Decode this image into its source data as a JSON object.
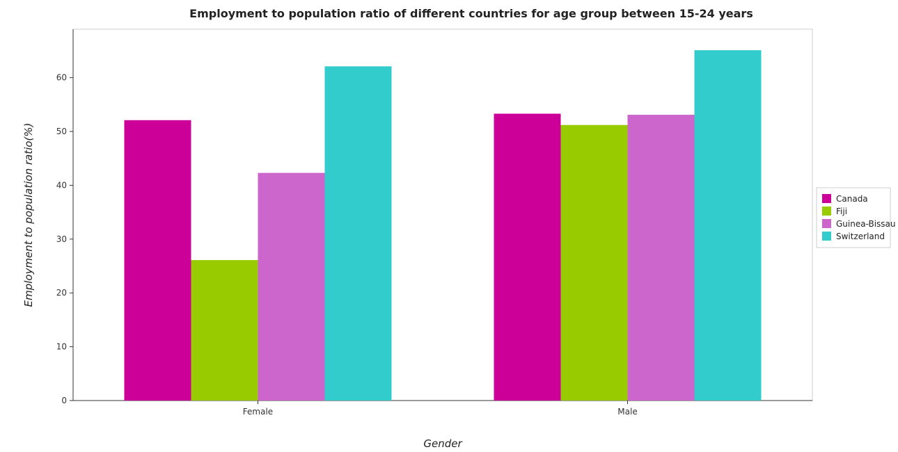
{
  "chart_data": {
    "type": "bar",
    "title": "Employment to population ratio of different countries for age group between 15-24 years",
    "xlabel": "Gender",
    "ylabel": "Employment to population ratio(%)",
    "categories": [
      "Female",
      "Male"
    ],
    "series": [
      {
        "name": "Canada",
        "color": "#cc0099",
        "values": [
          52.1,
          53.3
        ]
      },
      {
        "name": "Fiji",
        "color": "#99cc00",
        "values": [
          26.1,
          51.2
        ]
      },
      {
        "name": "Guinea-Bissau",
        "color": "#cc66cc",
        "values": [
          42.3,
          53.1
        ]
      },
      {
        "name": "Switzerland",
        "color": "#33cccc",
        "values": [
          62.1,
          65.1
        ]
      }
    ],
    "ylim": [
      0,
      69
    ],
    "yticks": [
      0,
      10,
      20,
      30,
      40,
      50,
      60
    ],
    "grid": false,
    "legend": "right"
  }
}
